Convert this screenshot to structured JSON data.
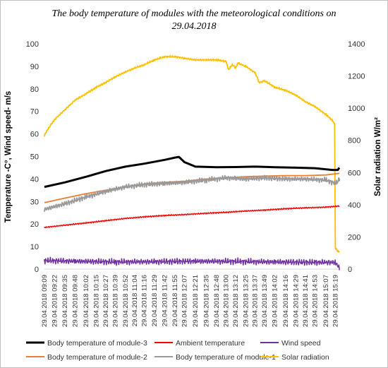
{
  "chart_data": {
    "type": "line",
    "title_line1": "The body temperature of modules with the meteorological conditions on",
    "title_line2": "29.04.2018",
    "ylabel_left": "Temperature -C°, Wind speed- m/s",
    "ylabel_right": "Solar radiation W/m²",
    "ylim_left": [
      0,
      100
    ],
    "ylim_right": [
      0,
      1400
    ],
    "yticks_left": [
      "0",
      "10",
      "20",
      "30",
      "40",
      "50",
      "60",
      "70",
      "80",
      "90",
      "100"
    ],
    "yticks_right": [
      "0",
      "200",
      "400",
      "600",
      "800",
      "1000",
      "1200",
      "1400"
    ],
    "grid": false,
    "legend_position": "bottom",
    "x_time_range": [
      "09:09",
      "15:24"
    ],
    "categories": [
      "29.04.2018 09:09",
      "29.04.2018 09:22",
      "29.04.2018 09:35",
      "29.04.2018 09:48",
      "29.04.2018 10:02",
      "29.04.2018 10:15",
      "29.04.2018 10:27",
      "29.04.2018 10:39",
      "29.04.2018 10:52",
      "29.04.2018 11:04",
      "29.04.2018 11:16",
      "29.04.2018 11:29",
      "29.04.2018 11:42",
      "29.04.2018 11:55",
      "29.04.2018 12:07",
      "29.04.2018 12:21",
      "29.04.2018 12:35",
      "29.04.2018 12:48",
      "29.04.2018 13:00",
      "29.04.2018 13:12",
      "29.04.2018 13:25",
      "29.04.2018 13:37",
      "29.04.2018 13:49",
      "29.04.2018 14:02",
      "29.04.2018 14:16",
      "29.04.2018 14:29",
      "29.04.2018 14:41",
      "29.04.2018 14:53",
      "29.04.2018 15:07",
      "29.04.2018 15:19"
    ],
    "series": [
      {
        "name": "Body temperature of module-3",
        "axis": "left",
        "color": "#000000",
        "width": 3,
        "points": [
          [
            "09:09",
            36.5
          ],
          [
            "09:35",
            38.5
          ],
          [
            "10:02",
            41
          ],
          [
            "10:27",
            43.5
          ],
          [
            "10:52",
            45.5
          ],
          [
            "11:16",
            46.8
          ],
          [
            "11:42",
            48.5
          ],
          [
            "11:55",
            49.5
          ],
          [
            "12:00",
            49.8
          ],
          [
            "12:07",
            47.5
          ],
          [
            "12:21",
            45.5
          ],
          [
            "12:48",
            45.2
          ],
          [
            "13:12",
            45.3
          ],
          [
            "13:37",
            45.5
          ],
          [
            "14:02",
            45.2
          ],
          [
            "14:29",
            45
          ],
          [
            "14:53",
            44.8
          ],
          [
            "15:15",
            44
          ],
          [
            "15:22",
            44
          ],
          [
            "15:24",
            45
          ]
        ]
      },
      {
        "name": "Ambient temperature",
        "axis": "left",
        "color": "#ff0000",
        "width": 1.5,
        "noise": 0.35,
        "points": [
          [
            "09:09",
            18.5
          ],
          [
            "09:35",
            19.5
          ],
          [
            "10:02",
            20.5
          ],
          [
            "10:27",
            21.5
          ],
          [
            "10:52",
            22.5
          ],
          [
            "11:16",
            23.2
          ],
          [
            "11:42",
            23.8
          ],
          [
            "12:07",
            24.2
          ],
          [
            "12:35",
            24.8
          ],
          [
            "13:00",
            25.2
          ],
          [
            "13:25",
            25.8
          ],
          [
            "13:49",
            26.2
          ],
          [
            "14:16",
            26.8
          ],
          [
            "14:41",
            27.2
          ],
          [
            "15:07",
            27.5
          ],
          [
            "15:24",
            28
          ]
        ]
      },
      {
        "name": "Wind speed",
        "axis": "left",
        "color": "#7030a0",
        "width": 1.5,
        "noise": 1.6,
        "points": [
          [
            "09:09",
            3.8
          ],
          [
            "09:48",
            3.5
          ],
          [
            "10:39",
            3.2
          ],
          [
            "11:29",
            3.3
          ],
          [
            "12:21",
            3.5
          ],
          [
            "13:12",
            3.4
          ],
          [
            "14:02",
            3.2
          ],
          [
            "14:53",
            3
          ],
          [
            "15:19",
            3
          ],
          [
            "15:24",
            0.5
          ]
        ]
      },
      {
        "name": "Body temperature of module-2",
        "axis": "left",
        "color": "#ed7d31",
        "width": 1.8,
        "points": [
          [
            "09:09",
            29.5
          ],
          [
            "09:35",
            31.5
          ],
          [
            "10:02",
            33.5
          ],
          [
            "10:27",
            35
          ],
          [
            "10:52",
            36.5
          ],
          [
            "11:16",
            37.8
          ],
          [
            "11:42",
            38.5
          ],
          [
            "12:07",
            39
          ],
          [
            "12:35",
            40
          ],
          [
            "13:00",
            40.5
          ],
          [
            "13:25",
            41
          ],
          [
            "13:49",
            41.3
          ],
          [
            "14:16",
            41.5
          ],
          [
            "14:41",
            41.5
          ],
          [
            "15:07",
            41.8
          ],
          [
            "15:24",
            42.5
          ]
        ]
      },
      {
        "name": "Body temperature of module-1",
        "axis": "left",
        "color": "#999999",
        "width": 1.8,
        "noise": 1.3,
        "points": [
          [
            "09:09",
            26.5
          ],
          [
            "09:35",
            29
          ],
          [
            "10:02",
            32
          ],
          [
            "10:27",
            34.5
          ],
          [
            "10:52",
            36.5
          ],
          [
            "11:16",
            37.5
          ],
          [
            "11:42",
            38
          ],
          [
            "12:07",
            38.5
          ],
          [
            "12:35",
            39.5
          ],
          [
            "13:00",
            40.5
          ],
          [
            "13:25",
            40
          ],
          [
            "13:49",
            40.5
          ],
          [
            "14:16",
            40
          ],
          [
            "14:41",
            40
          ],
          [
            "15:07",
            39.5
          ],
          [
            "15:20",
            38
          ],
          [
            "15:24",
            40
          ]
        ]
      },
      {
        "name": "Solar radiation",
        "axis": "right",
        "color": "#ffc000",
        "width": 1.8,
        "noise": 7,
        "points": [
          [
            "09:09",
            830
          ],
          [
            "09:12",
            860
          ],
          [
            "09:22",
            930
          ],
          [
            "09:35",
            990
          ],
          [
            "09:48",
            1050
          ],
          [
            "10:02",
            1090
          ],
          [
            "10:15",
            1130
          ],
          [
            "10:27",
            1160
          ],
          [
            "10:39",
            1195
          ],
          [
            "10:52",
            1225
          ],
          [
            "11:04",
            1250
          ],
          [
            "11:16",
            1270
          ],
          [
            "11:29",
            1300
          ],
          [
            "11:42",
            1320
          ],
          [
            "11:55",
            1320
          ],
          [
            "12:07",
            1310
          ],
          [
            "12:21",
            1300
          ],
          [
            "12:35",
            1300
          ],
          [
            "12:48",
            1300
          ],
          [
            "13:00",
            1290
          ],
          [
            "13:03",
            1240
          ],
          [
            "13:08",
            1270
          ],
          [
            "13:12",
            1250
          ],
          [
            "13:15",
            1280
          ],
          [
            "13:25",
            1260
          ],
          [
            "13:37",
            1220
          ],
          [
            "13:42",
            1160
          ],
          [
            "13:49",
            1170
          ],
          [
            "14:02",
            1130
          ],
          [
            "14:16",
            1110
          ],
          [
            "14:29",
            1080
          ],
          [
            "14:41",
            1040
          ],
          [
            "14:53",
            1010
          ],
          [
            "15:07",
            960
          ],
          [
            "15:15",
            925
          ],
          [
            "15:18",
            900
          ],
          [
            "15:19",
            130
          ],
          [
            "15:22",
            110
          ],
          [
            "15:24",
            110
          ]
        ]
      }
    ]
  }
}
